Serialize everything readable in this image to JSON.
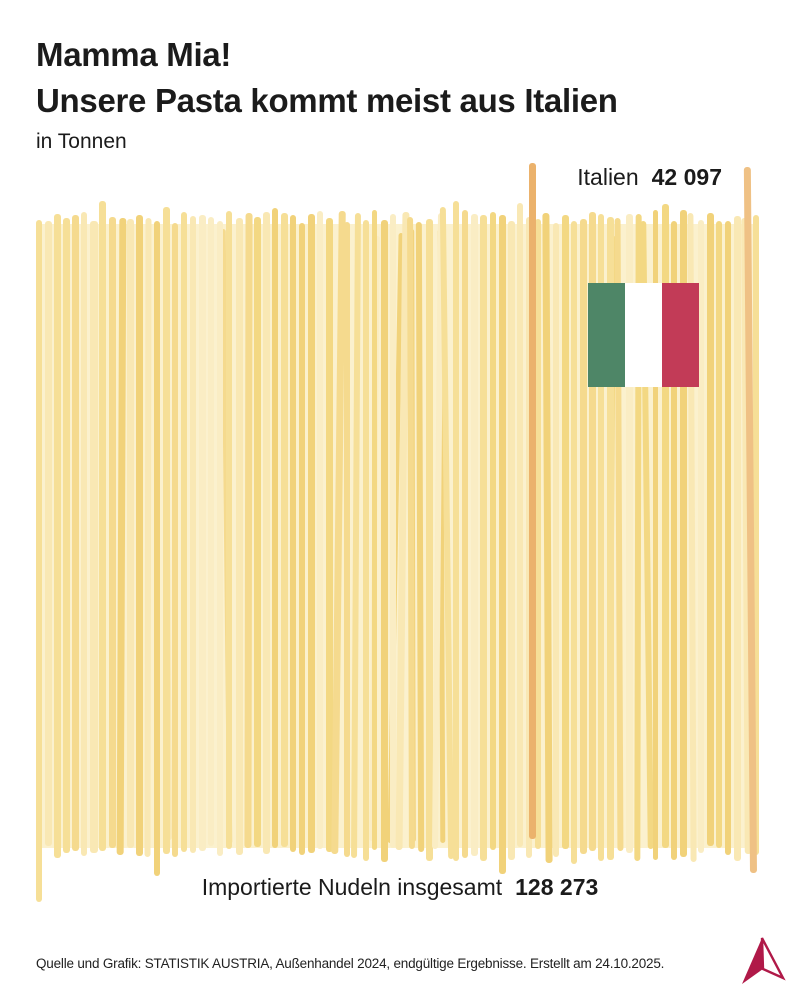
{
  "header": {
    "title_line1": "Mamma Mia!",
    "title_line2": "Unsere Pasta kommt meist aus Italien",
    "subtitle": "in Tonnen"
  },
  "chart_data": {
    "type": "pictogram",
    "title": "Mamma Mia! Unsere Pasta kommt meist aus Italien",
    "unit": "Tonnen",
    "series": [
      {
        "name": "Italien",
        "value": 42097
      },
      {
        "name": "Importierte Nudeln insgesamt",
        "value": 128273
      }
    ],
    "legend_position": "none",
    "grid": false,
    "colors": {
      "pasta_bg": "#FBF1CE",
      "italy_strand": "#EBB26C",
      "edge_strand": "#EFC185",
      "flag_green": "#4E8667",
      "flag_white": "#FFFFFF",
      "flag_red": "#C23B57",
      "logo_red": "#B01948",
      "text": "#1B1B1B"
    },
    "strands": {
      "count": 80,
      "palette": [
        "#F6DF97",
        "#F3D883",
        "#F9E8B4",
        "#F1D27A",
        "#FAEDC4",
        "#F5DA8E"
      ]
    }
  },
  "annotations": {
    "italy_label": "Italien",
    "italy_value": "42 097",
    "total_label": "Importierte Nudeln insgesamt",
    "total_value": "128 273"
  },
  "footer": {
    "source": "Quelle und Grafik: STATISTIK AUSTRIA, Außenhandel 2024, endgültige Ergebnisse. Erstellt am 24.10.2025.",
    "logo": "statistik-austria-arrow-logo"
  }
}
